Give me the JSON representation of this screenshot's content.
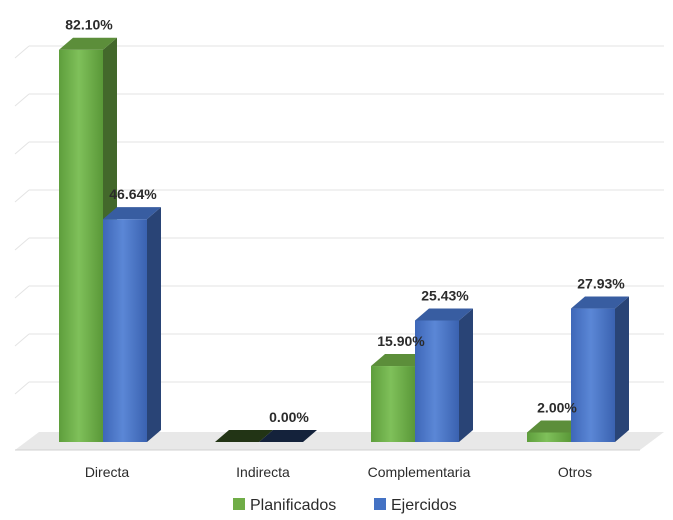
{
  "chart_data": {
    "type": "bar",
    "categories": [
      "Directa",
      "Indirecta",
      "Complementaria",
      "Otros"
    ],
    "series": [
      {
        "name": "Planificados",
        "values": [
          82.1,
          0.0,
          15.9,
          2.0
        ],
        "color": "#70ad47"
      },
      {
        "name": "Ejercidos",
        "values": [
          46.64,
          0.0,
          25.43,
          27.93
        ],
        "color": "#4472c4"
      }
    ],
    "data_labels": [
      [
        "82.10%",
        "",
        "15.90%",
        "2.00%"
      ],
      [
        "46.64%",
        "0.00%",
        "25.43%",
        "27.93%"
      ]
    ],
    "ylim": [
      0,
      90
    ],
    "grid": true,
    "legend_position": "bottom"
  }
}
